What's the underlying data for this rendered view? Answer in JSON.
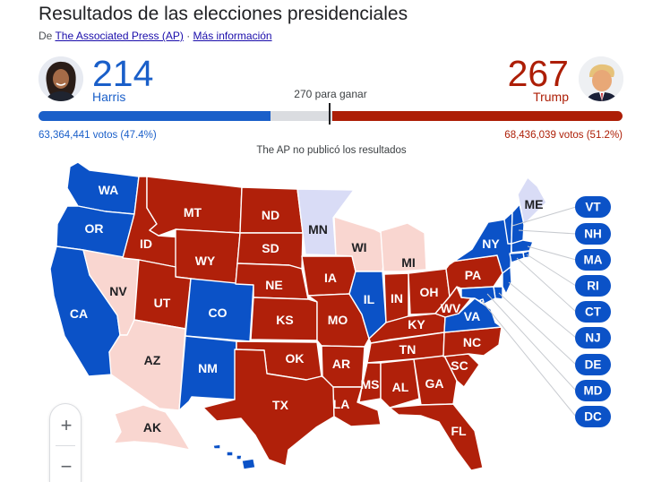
{
  "header": {
    "title": "Resultados de las elecciones presidenciales",
    "source_prefix": "De",
    "source_link": "The Associated Press (AP)",
    "separator": "·",
    "more_info": "Más información"
  },
  "race": {
    "threshold_label": "270 para ganar",
    "total_electoral_votes": 538,
    "threshold": 270,
    "dem": {
      "name": "Harris",
      "electoral_votes": 214,
      "votes_label": "63,364,441 votos (47.4%)",
      "color": "#1a5fc9"
    },
    "rep": {
      "name": "Trump",
      "electoral_votes": 267,
      "votes_label": "68,436,039 votos (51.2%)",
      "color": "#ad1e06"
    },
    "note": "The AP no publicó los resultados"
  },
  "legend_colors": {
    "dem_won": "#0b52c7",
    "rep_won": "#b0200a",
    "dem_leading": "#d9dcf6",
    "rep_leading": "#f9d6d0",
    "undecided": "#e3e5e8"
  },
  "states": [
    {
      "abbr": "WA",
      "status": "dem_won"
    },
    {
      "abbr": "OR",
      "status": "dem_won"
    },
    {
      "abbr": "CA",
      "status": "dem_won"
    },
    {
      "abbr": "NV",
      "status": "rep_leading"
    },
    {
      "abbr": "ID",
      "status": "rep_won"
    },
    {
      "abbr": "MT",
      "status": "rep_won"
    },
    {
      "abbr": "WY",
      "status": "rep_won"
    },
    {
      "abbr": "UT",
      "status": "rep_won"
    },
    {
      "abbr": "AZ",
      "status": "rep_leading"
    },
    {
      "abbr": "CO",
      "status": "dem_won"
    },
    {
      "abbr": "NM",
      "status": "dem_won"
    },
    {
      "abbr": "ND",
      "status": "rep_won"
    },
    {
      "abbr": "SD",
      "status": "rep_won"
    },
    {
      "abbr": "NE",
      "status": "rep_won"
    },
    {
      "abbr": "KS",
      "status": "rep_won"
    },
    {
      "abbr": "OK",
      "status": "rep_won"
    },
    {
      "abbr": "TX",
      "status": "rep_won"
    },
    {
      "abbr": "MN",
      "status": "dem_leading"
    },
    {
      "abbr": "IA",
      "status": "rep_won"
    },
    {
      "abbr": "MO",
      "status": "rep_won"
    },
    {
      "abbr": "AR",
      "status": "rep_won"
    },
    {
      "abbr": "LA",
      "status": "rep_won"
    },
    {
      "abbr": "WI",
      "status": "rep_leading"
    },
    {
      "abbr": "IL",
      "status": "dem_won"
    },
    {
      "abbr": "MI",
      "status": "rep_leading"
    },
    {
      "abbr": "IN",
      "status": "rep_won"
    },
    {
      "abbr": "OH",
      "status": "rep_won"
    },
    {
      "abbr": "KY",
      "status": "rep_won"
    },
    {
      "abbr": "TN",
      "status": "rep_won"
    },
    {
      "abbr": "MS",
      "status": "rep_won"
    },
    {
      "abbr": "AL",
      "status": "rep_won"
    },
    {
      "abbr": "GA",
      "status": "rep_won"
    },
    {
      "abbr": "FL",
      "status": "rep_won"
    },
    {
      "abbr": "SC",
      "status": "rep_won"
    },
    {
      "abbr": "NC",
      "status": "rep_won"
    },
    {
      "abbr": "VA",
      "status": "dem_won"
    },
    {
      "abbr": "WV",
      "status": "rep_won"
    },
    {
      "abbr": "PA",
      "status": "rep_won"
    },
    {
      "abbr": "NY",
      "status": "dem_won"
    },
    {
      "abbr": "ME",
      "status": "dem_leading"
    },
    {
      "abbr": "AK",
      "status": "rep_leading"
    },
    {
      "abbr": "HI",
      "status": "dem_won"
    }
  ],
  "small_states": [
    {
      "abbr": "VT",
      "status": "dem_won"
    },
    {
      "abbr": "NH",
      "status": "dem_won"
    },
    {
      "abbr": "MA",
      "status": "dem_won"
    },
    {
      "abbr": "RI",
      "status": "dem_won"
    },
    {
      "abbr": "CT",
      "status": "dem_won"
    },
    {
      "abbr": "NJ",
      "status": "dem_won"
    },
    {
      "abbr": "DE",
      "status": "dem_won"
    },
    {
      "abbr": "MD",
      "status": "dem_won"
    },
    {
      "abbr": "DC",
      "status": "dem_won"
    }
  ],
  "zoom": {
    "in_label": "+",
    "out_label": "−"
  }
}
